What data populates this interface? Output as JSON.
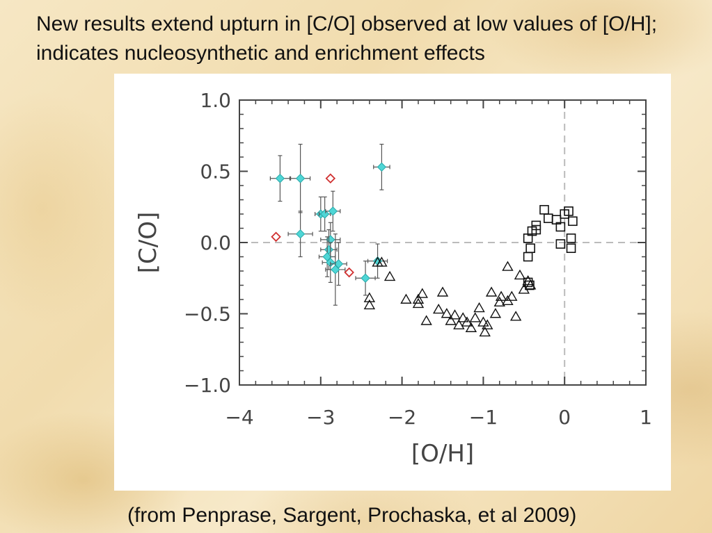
{
  "slide": {
    "title": "New results extend upturn in [C/O] observed at low values of [O/H]; indicates nucleosynthetic and enrichment effects",
    "caption": "(from Penprase, Sargent, Prochaska, et al 2009)"
  },
  "chart_data": {
    "type": "scatter",
    "title": "",
    "xlabel": "[O/H]",
    "ylabel": "[C/O]",
    "xlim": [
      -4,
      1
    ],
    "ylim": [
      -1.0,
      1.0
    ],
    "xticks": [
      -4,
      -3,
      -2,
      -1,
      0,
      1
    ],
    "xtick_labels": [
      "−4",
      "−3",
      "−2",
      "−1",
      "0",
      "1"
    ],
    "yticks": [
      -1.0,
      -0.5,
      0.0,
      0.5,
      1.0
    ],
    "ytick_labels": [
      "−1.0",
      "−0.5",
      "0.0",
      "0.5",
      "1.0"
    ],
    "reference_lines": {
      "x": 0,
      "y": 0,
      "style": "dashed"
    },
    "colors": {
      "cyan": "#4fd6d6",
      "red": "#d03030",
      "black": "#111111",
      "axis": "#444444",
      "ref": "#bbbbbb"
    },
    "series": [
      {
        "marker": "diamond-errorbar",
        "color": "#4fd6d6",
        "points": [
          {
            "x": -3.5,
            "y": 0.45,
            "xerr": 0.12,
            "yerr": 0.16
          },
          {
            "x": -3.25,
            "y": 0.45,
            "xerr": 0.12,
            "yerr": 0.24
          },
          {
            "x": -3.25,
            "y": 0.06,
            "xerr": 0.15,
            "yerr": 0.16
          },
          {
            "x": -3.0,
            "y": 0.2,
            "xerr": 0.07,
            "yerr": 0.12
          },
          {
            "x": -2.95,
            "y": 0.2,
            "xerr": 0.07,
            "yerr": 0.12
          },
          {
            "x": -2.85,
            "y": 0.22,
            "xerr": 0.09,
            "yerr": 0.14
          },
          {
            "x": -2.88,
            "y": 0.02,
            "xerr": 0.12,
            "yerr": 0.12
          },
          {
            "x": -2.9,
            "y": -0.05,
            "xerr": 0.1,
            "yerr": 0.14
          },
          {
            "x": -2.92,
            "y": -0.1,
            "xerr": 0.1,
            "yerr": 0.14
          },
          {
            "x": -2.88,
            "y": -0.14,
            "xerr": 0.1,
            "yerr": 0.14
          },
          {
            "x": -2.78,
            "y": -0.15,
            "xerr": 0.1,
            "yerr": 0.15
          },
          {
            "x": -2.82,
            "y": -0.19,
            "xerr": 0.12,
            "yerr": 0.25
          },
          {
            "x": -2.45,
            "y": -0.25,
            "xerr": 0.12,
            "yerr": 0.12
          },
          {
            "x": -2.3,
            "y": -0.13,
            "xerr": 0.12,
            "yerr": 0.12
          },
          {
            "x": -2.25,
            "y": 0.53,
            "xerr": 0.1,
            "yerr": 0.16
          }
        ]
      },
      {
        "marker": "diamond",
        "color": "#d03030",
        "points": [
          {
            "x": -3.55,
            "y": 0.04
          },
          {
            "x": -2.88,
            "y": 0.45
          },
          {
            "x": -2.65,
            "y": -0.21
          }
        ]
      },
      {
        "marker": "triangle",
        "color": "#111111",
        "points": [
          {
            "x": -2.25,
            "y": -0.14
          },
          {
            "x": -2.15,
            "y": -0.24
          },
          {
            "x": -2.4,
            "y": -0.39
          },
          {
            "x": -2.4,
            "y": -0.44
          },
          {
            "x": -1.95,
            "y": -0.4
          },
          {
            "x": -1.8,
            "y": -0.4
          },
          {
            "x": -1.8,
            "y": -0.43
          },
          {
            "x": -1.75,
            "y": -0.36
          },
          {
            "x": -1.7,
            "y": -0.55
          },
          {
            "x": -1.55,
            "y": -0.47
          },
          {
            "x": -1.5,
            "y": -0.35
          },
          {
            "x": -1.45,
            "y": -0.5
          },
          {
            "x": -1.4,
            "y": -0.55
          },
          {
            "x": -1.35,
            "y": -0.51
          },
          {
            "x": -1.3,
            "y": -0.58
          },
          {
            "x": -1.25,
            "y": -0.53
          },
          {
            "x": -1.2,
            "y": -0.56
          },
          {
            "x": -1.15,
            "y": -0.6
          },
          {
            "x": -1.1,
            "y": -0.53
          },
          {
            "x": -1.05,
            "y": -0.46
          },
          {
            "x": -1.0,
            "y": -0.56
          },
          {
            "x": -0.98,
            "y": -0.63
          },
          {
            "x": -0.95,
            "y": -0.58
          },
          {
            "x": -0.9,
            "y": -0.35
          },
          {
            "x": -0.85,
            "y": -0.5
          },
          {
            "x": -0.8,
            "y": -0.42
          },
          {
            "x": -0.78,
            "y": -0.38
          },
          {
            "x": -0.7,
            "y": -0.41
          },
          {
            "x": -0.65,
            "y": -0.38
          },
          {
            "x": -0.6,
            "y": -0.52
          },
          {
            "x": -0.55,
            "y": -0.23
          },
          {
            "x": -0.5,
            "y": -0.33
          },
          {
            "x": -0.45,
            "y": -0.27
          },
          {
            "x": -0.42,
            "y": -0.3
          },
          {
            "x": -0.7,
            "y": -0.17
          },
          {
            "x": -2.3,
            "y": -0.14
          }
        ]
      },
      {
        "marker": "square",
        "color": "#111111",
        "points": [
          {
            "x": -0.45,
            "y": -0.28
          },
          {
            "x": -0.43,
            "y": -0.3
          },
          {
            "x": -0.45,
            "y": -0.1
          },
          {
            "x": -0.42,
            "y": -0.04
          },
          {
            "x": -0.45,
            "y": 0.03
          },
          {
            "x": -0.4,
            "y": 0.08
          },
          {
            "x": -0.35,
            "y": 0.12
          },
          {
            "x": -0.35,
            "y": 0.09
          },
          {
            "x": -0.25,
            "y": 0.23
          },
          {
            "x": -0.2,
            "y": 0.17
          },
          {
            "x": -0.1,
            "y": 0.16
          },
          {
            "x": -0.05,
            "y": 0.11
          },
          {
            "x": 0.0,
            "y": 0.2
          },
          {
            "x": 0.05,
            "y": 0.22
          },
          {
            "x": 0.1,
            "y": 0.15
          },
          {
            "x": 0.08,
            "y": 0.03
          },
          {
            "x": 0.08,
            "y": -0.04
          },
          {
            "x": -0.05,
            "y": -0.01
          }
        ]
      }
    ]
  }
}
